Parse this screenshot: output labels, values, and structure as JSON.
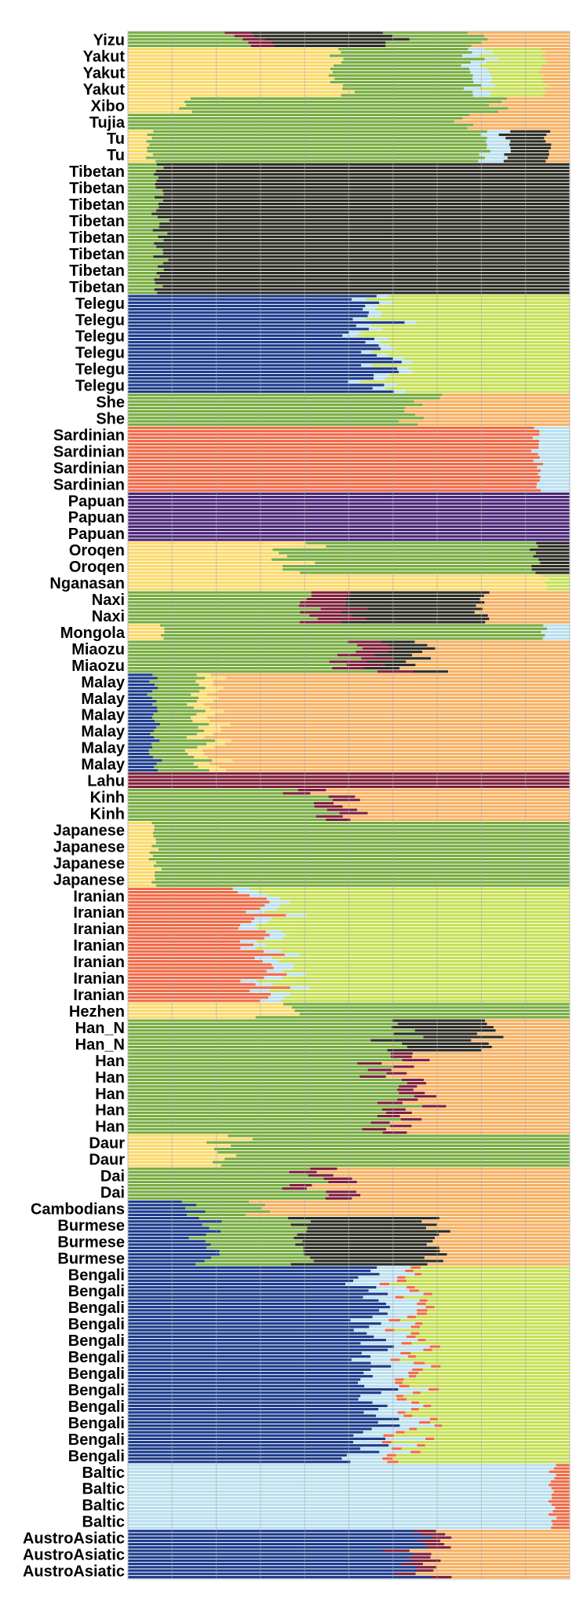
{
  "chart_data": {
    "type": "bar",
    "orientation": "horizontal",
    "stacked": true,
    "grid": true,
    "legend": "none",
    "title": "",
    "xlabel": "",
    "ylabel": "",
    "xlim": [
      0,
      1
    ],
    "components": [
      {
        "key": "green",
        "color": "#77ac3f"
      },
      {
        "key": "darkgray",
        "color": "#2c2c24"
      },
      {
        "key": "maroon",
        "color": "#7f1f3a"
      },
      {
        "key": "orange",
        "color": "#f7b060"
      },
      {
        "key": "yellow",
        "color": "#fbd969"
      },
      {
        "key": "lime",
        "color": "#c6e053"
      },
      {
        "key": "lightblue",
        "color": "#b9dfee"
      },
      {
        "key": "navy",
        "color": "#1d3c8c"
      },
      {
        "key": "red",
        "color": "#f06a46"
      },
      {
        "key": "purple",
        "color": "#4a2677"
      }
    ],
    "labels": [
      "Yizu",
      "Yakut",
      "Yakut",
      "Yakut",
      "Xibo",
      "Tujia",
      "Tu",
      "Tu",
      "Tibetan",
      "Tibetan",
      "Tibetan",
      "Tibetan",
      "Tibetan",
      "Tibetan",
      "Tibetan",
      "Tibetan",
      "Telegu",
      "Telegu",
      "Telegu",
      "Telegu",
      "Telegu",
      "Telegu",
      "She",
      "She",
      "Sardinian",
      "Sardinian",
      "Sardinian",
      "Sardinian",
      "Papuan",
      "Papuan",
      "Papuan",
      "Oroqen",
      "Oroqen",
      "Nganasan",
      "Naxi",
      "Naxi",
      "Mongola",
      "Miaozu",
      "Miaozu",
      "Malay",
      "Malay",
      "Malay",
      "Malay",
      "Malay",
      "Malay",
      "Lahu",
      "Kinh",
      "Kinh",
      "Japanese",
      "Japanese",
      "Japanese",
      "Japanese",
      "Iranian",
      "Iranian",
      "Iranian",
      "Iranian",
      "Iranian",
      "Iranian",
      "Iranian",
      "Hezhen",
      "Han_N",
      "Han_N",
      "Han",
      "Han",
      "Han",
      "Han",
      "Han",
      "Daur",
      "Daur",
      "Dai",
      "Dai",
      "Cambodians",
      "Burmese",
      "Burmese",
      "Burmese",
      "Bengali",
      "Bengali",
      "Bengali",
      "Bengali",
      "Bengali",
      "Bengali",
      "Bengali",
      "Bengali",
      "Bengali",
      "Bengali",
      "Bengali",
      "Bengali",
      "Baltic",
      "Baltic",
      "Baltic",
      "Baltic",
      "AustroAsiatic",
      "AustroAsiatic",
      "AustroAsiatic"
    ],
    "profiles": {
      "Yizu": [
        [
          "green",
          0.25
        ],
        [
          "maroon",
          0.05
        ],
        [
          "darkgray",
          0.3
        ],
        [
          "green",
          0.2
        ],
        [
          "orange",
          0.2
        ]
      ],
      "Yakut": [
        [
          "yellow",
          0.48
        ],
        [
          "green",
          0.3
        ],
        [
          "lightblue",
          0.04
        ],
        [
          "lime",
          0.12
        ],
        [
          "orange",
          0.06
        ]
      ],
      "Xibo": [
        [
          "yellow",
          0.12
        ],
        [
          "green",
          0.72
        ],
        [
          "orange",
          0.16
        ]
      ],
      "Tujia": [
        [
          "green",
          0.72
        ],
        [
          "orange",
          0.28
        ]
      ],
      "Tu": [
        [
          "yellow",
          0.05
        ],
        [
          "green",
          0.75
        ],
        [
          "lightblue",
          0.05
        ],
        [
          "darkgray",
          0.1
        ],
        [
          "orange",
          0.05
        ]
      ],
      "Tibetan": [
        [
          "green",
          0.07
        ],
        [
          "darkgray",
          0.93
        ]
      ],
      "Telegu": [
        [
          "navy",
          0.55
        ],
        [
          "lightblue",
          0.03
        ],
        [
          "lime",
          0.42
        ]
      ],
      "She": [
        [
          "green",
          0.68
        ],
        [
          "orange",
          0.32
        ]
      ],
      "Sardinian": [
        [
          "red",
          0.93
        ],
        [
          "lightblue",
          0.07
        ]
      ],
      "Papuan": [
        [
          "purple",
          1.0
        ]
      ],
      "Oroqen": [
        [
          "yellow",
          0.4
        ],
        [
          "green",
          0.52
        ],
        [
          "darkgray",
          0.08
        ]
      ],
      "Nganasan": [
        [
          "yellow",
          0.95
        ],
        [
          "lime",
          0.05
        ]
      ],
      "Naxi": [
        [
          "green",
          0.4
        ],
        [
          "maroon",
          0.1
        ],
        [
          "darkgray",
          0.3
        ],
        [
          "orange",
          0.2
        ]
      ],
      "Mongola": [
        [
          "yellow",
          0.08
        ],
        [
          "green",
          0.86
        ],
        [
          "lightblue",
          0.06
        ]
      ],
      "Miaozu": [
        [
          "green",
          0.52
        ],
        [
          "maroon",
          0.08
        ],
        [
          "darkgray",
          0.08
        ],
        [
          "orange",
          0.32
        ]
      ],
      "Malay": [
        [
          "navy",
          0.06
        ],
        [
          "green",
          0.1
        ],
        [
          "yellow",
          0.04
        ],
        [
          "orange",
          0.8
        ]
      ],
      "Lahu": [
        [
          "maroon",
          1.0
        ]
      ],
      "Kinh": [
        [
          "green",
          0.42
        ],
        [
          "maroon",
          0.06
        ],
        [
          "orange",
          0.52
        ]
      ],
      "Japanese": [
        [
          "yellow",
          0.06
        ],
        [
          "green",
          0.94
        ]
      ],
      "Iranian": [
        [
          "red",
          0.3
        ],
        [
          "lightblue",
          0.04
        ],
        [
          "lime",
          0.66
        ]
      ],
      "Hezhen": [
        [
          "yellow",
          0.35
        ],
        [
          "green",
          0.65
        ]
      ],
      "Han_N": [
        [
          "green",
          0.62
        ],
        [
          "darkgray",
          0.2
        ],
        [
          "orange",
          0.18
        ]
      ],
      "Han": [
        [
          "green",
          0.6
        ],
        [
          "maroon",
          0.05
        ],
        [
          "orange",
          0.35
        ]
      ],
      "Daur": [
        [
          "yellow",
          0.22
        ],
        [
          "green",
          0.78
        ]
      ],
      "Dai": [
        [
          "green",
          0.4
        ],
        [
          "maroon",
          0.06
        ],
        [
          "orange",
          0.54
        ]
      ],
      "Cambodians": [
        [
          "navy",
          0.14
        ],
        [
          "green",
          0.16
        ],
        [
          "orange",
          0.7
        ]
      ],
      "Burmese": [
        [
          "navy",
          0.18
        ],
        [
          "green",
          0.22
        ],
        [
          "darkgray",
          0.3
        ],
        [
          "orange",
          0.3
        ]
      ],
      "Bengali": [
        [
          "navy",
          0.55
        ],
        [
          "lightblue",
          0.08
        ],
        [
          "red",
          0.02
        ],
        [
          "lime",
          0.35
        ]
      ],
      "Baltic": [
        [
          "lightblue",
          0.96
        ],
        [
          "red",
          0.04
        ]
      ],
      "AustroAsiatic": [
        [
          "navy",
          0.65
        ],
        [
          "maroon",
          0.05
        ],
        [
          "orange",
          0.3
        ]
      ]
    }
  }
}
